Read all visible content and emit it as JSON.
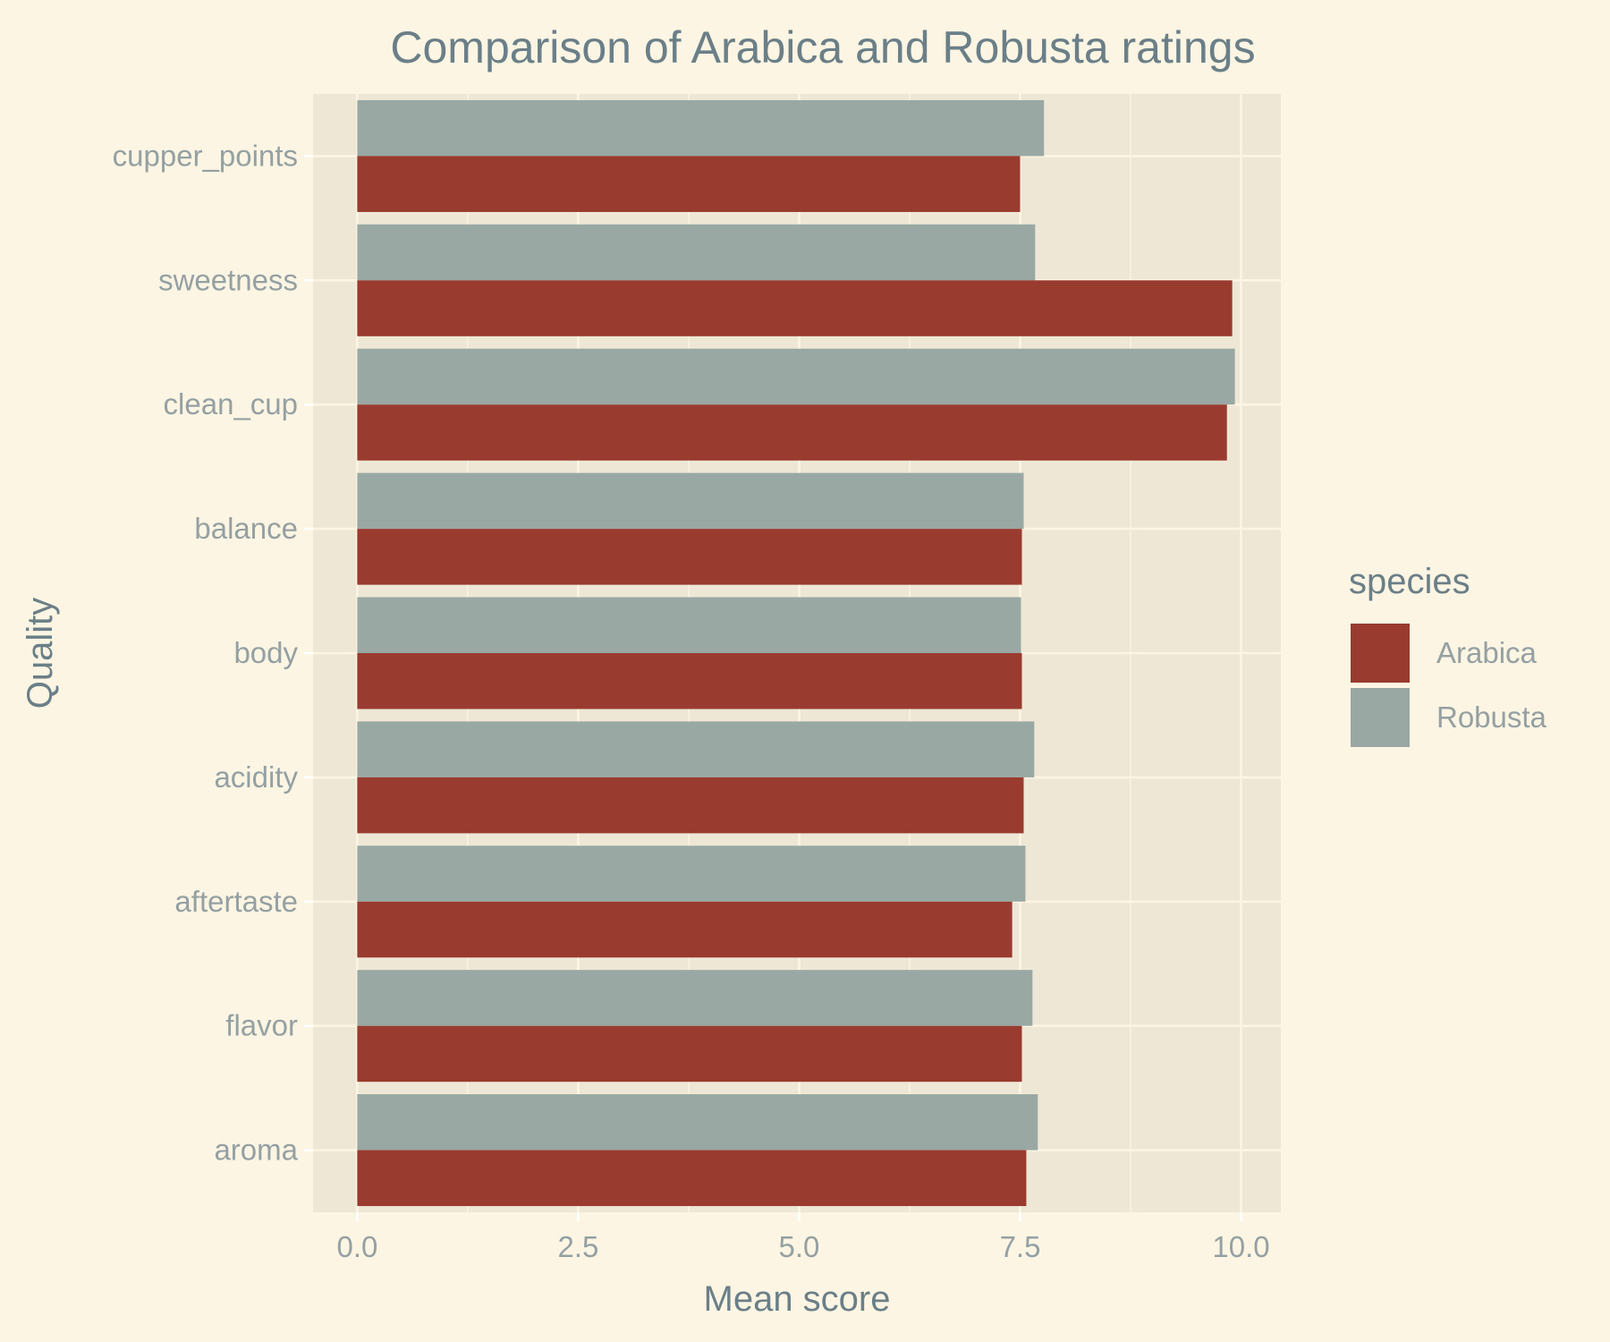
{
  "chart_data": {
    "type": "bar",
    "orientation": "horizontal",
    "title": "Comparison of Arabica and Robusta ratings",
    "xlabel": "Mean score",
    "ylabel": "Quality",
    "xlim": [
      -0.5,
      10.45
    ],
    "x_ticks": [
      0,
      2.5,
      5,
      7.5,
      10
    ],
    "x_tick_labels": [
      "0.0",
      "2.5",
      "5.0",
      "7.5",
      "10.0"
    ],
    "categories": [
      "aroma",
      "flavor",
      "aftertaste",
      "acidity",
      "body",
      "balance",
      "clean_cup",
      "sweetness",
      "cupper_points"
    ],
    "series": [
      {
        "name": "Arabica",
        "color": "#9a3b2f",
        "values": [
          7.57,
          7.52,
          7.41,
          7.54,
          7.52,
          7.52,
          9.84,
          9.9,
          7.5
        ]
      },
      {
        "name": "Robusta",
        "color": "#9aa8a4",
        "values": [
          7.7,
          7.64,
          7.56,
          7.66,
          7.51,
          7.54,
          9.93,
          7.67,
          7.77
        ]
      }
    ],
    "grid": true,
    "legend": {
      "title": "species",
      "placement": "right"
    },
    "colors": {
      "background": "#fcf5e3",
      "panel": "#efe7d6",
      "grid": "#fcf5e3",
      "text": "#6a7f87",
      "tick_text": "#95a0a3"
    }
  }
}
